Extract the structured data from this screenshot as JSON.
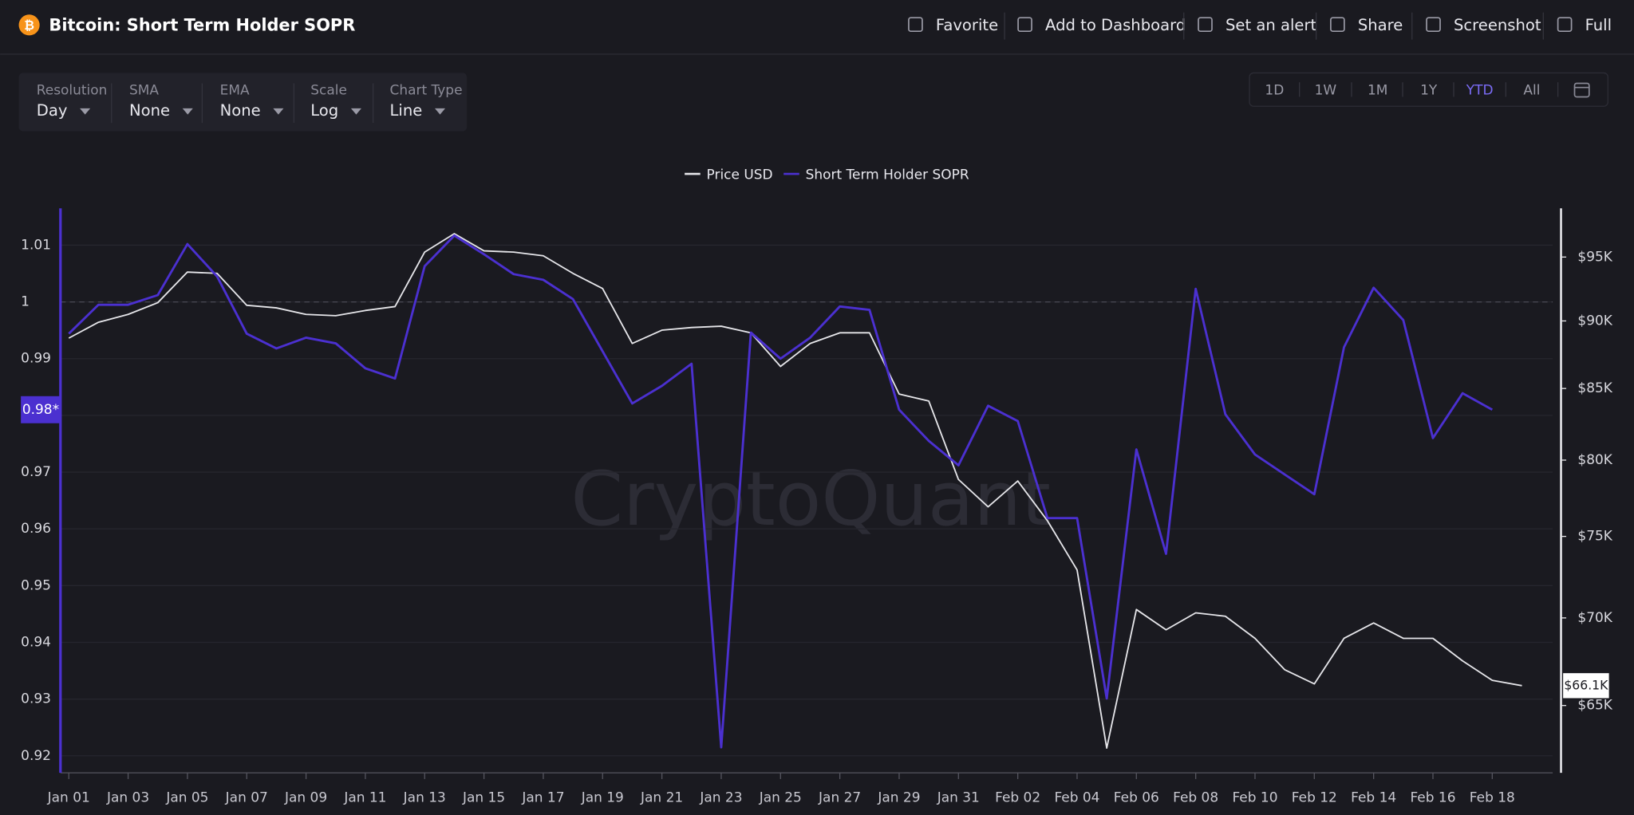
{
  "header": {
    "title": "Bitcoin: Short Term Holder SOPR",
    "actions": [
      "Favorite",
      "Add to Dashboard",
      "Set an alert",
      "Share",
      "Screenshot",
      "Full"
    ]
  },
  "controls": [
    {
      "label": "Resolution",
      "value": "Day"
    },
    {
      "label": "SMA",
      "value": "None"
    },
    {
      "label": "EMA",
      "value": "None"
    },
    {
      "label": "Scale",
      "value": "Log"
    },
    {
      "label": "Chart Type",
      "value": "Line"
    }
  ],
  "ranges": [
    "1D",
    "1W",
    "1M",
    "1Y",
    "YTD",
    "All"
  ],
  "active_range_index": 4,
  "watermark": "CryptoQuant",
  "chart_data": {
    "type": "line",
    "categories": [
      "Jan 01",
      null,
      "Jan 03",
      null,
      "Jan 05",
      null,
      "Jan 07",
      null,
      "Jan 09",
      null,
      "Jan 11",
      null,
      "Jan 13",
      null,
      "Jan 15",
      null,
      "Jan 17",
      null,
      "Jan 19",
      null,
      "Jan 21",
      null,
      "Jan 23",
      null,
      "Jan 25",
      null,
      "Jan 27",
      null,
      "Jan 29",
      null,
      "Jan 31",
      null,
      "Feb 02",
      null,
      "Feb 04",
      null,
      "Feb 06",
      null,
      "Feb 08",
      null,
      "Feb 10",
      null,
      "Feb 12",
      null,
      "Feb 14",
      null,
      "Feb 16",
      null,
      "Feb 18",
      null
    ],
    "series": [
      {
        "name": "Price USD",
        "color": "#e6e6ea",
        "axis": "y2",
        "values": [
          88700,
          89900,
          90500,
          91400,
          93800,
          93700,
          91200,
          91000,
          90500,
          90400,
          90800,
          91100,
          95400,
          96900,
          95500,
          95400,
          95100,
          93700,
          92500,
          88300,
          89300,
          89500,
          89600,
          89100,
          86600,
          88300,
          89100,
          89100,
          84600,
          84100,
          78700,
          76900,
          78600,
          76000,
          72900,
          62700,
          70500,
          69300,
          70300,
          70100,
          68800,
          67000,
          66200,
          68800,
          69700,
          68800,
          68800,
          67500,
          66400,
          66100
        ]
      },
      {
        "name": "Short Term Holder SOPR",
        "color": "#4b30d0",
        "values": [
          0.9944,
          0.9995,
          0.9995,
          1.0012,
          1.0102,
          1.0045,
          0.9944,
          0.9918,
          0.9937,
          0.9927,
          0.9883,
          0.9865,
          1.0063,
          1.0117,
          1.0084,
          1.0049,
          1.0039,
          1.0005,
          0.9913,
          0.9821,
          0.9852,
          0.9891,
          0.9215,
          0.9946,
          0.99,
          0.9937,
          0.9992,
          0.9986,
          0.981,
          0.9755,
          0.9712,
          0.9817,
          0.979,
          0.9619,
          0.9619,
          0.9301,
          0.974,
          0.9556,
          1.0023,
          0.9802,
          0.9731,
          0.9696,
          0.9661,
          0.992,
          1.0025,
          0.9968,
          0.976,
          0.9839,
          0.981,
          null
        ]
      }
    ],
    "ylim": [
      0.917,
      1.0165
    ],
    "yticks": [
      0.92,
      0.93,
      0.94,
      0.95,
      0.96,
      0.97,
      0.98,
      0.99,
      1,
      1.01
    ],
    "y2lim": [
      61400,
      99000
    ],
    "y2scale": "log",
    "y2ticks": [
      {
        "value": 65000,
        "label": "$65K"
      },
      {
        "value": 70000,
        "label": "$70K"
      },
      {
        "value": 75000,
        "label": "$75K"
      },
      {
        "value": 80000,
        "label": "$80K"
      },
      {
        "value": 85000,
        "label": "$85K"
      },
      {
        "value": 90000,
        "label": "$90K"
      },
      {
        "value": 95000,
        "label": "$95K"
      }
    ],
    "reference_line": 1,
    "current_sopr": {
      "value": 0.981,
      "label": "0.98*"
    },
    "current_price": {
      "value": 66100,
      "label": "$66.1K"
    },
    "grid": true,
    "legend": "top"
  }
}
